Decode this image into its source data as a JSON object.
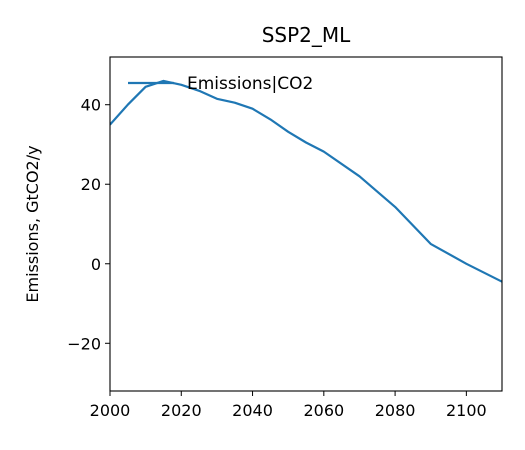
{
  "chart_data": {
    "type": "line",
    "title": "SSP2_ML",
    "xlabel": "",
    "ylabel": "Emissions, GtCO2/y",
    "xlim": [
      2000,
      2110
    ],
    "ylim": [
      -32,
      52
    ],
    "xticks": [
      2000,
      2020,
      2040,
      2060,
      2080,
      2100
    ],
    "yticks": [
      -20,
      0,
      20,
      40
    ],
    "ytick_labels": [
      "−20",
      "0",
      "20",
      "40"
    ],
    "legend": "upper left",
    "grid": false,
    "series": [
      {
        "name": "Emissions|CO2",
        "color": "#1f77b4",
        "x": [
          2000,
          2005,
          2010,
          2015,
          2020,
          2025,
          2030,
          2035,
          2040,
          2045,
          2050,
          2055,
          2060,
          2070,
          2080,
          2090,
          2100,
          2110
        ],
        "y": [
          35,
          40,
          44.5,
          46,
          45,
          43.5,
          41.5,
          40.5,
          39,
          36.3,
          33.2,
          30.5,
          28.2,
          22,
          14.3,
          5,
          0,
          -4.5
        ]
      }
    ]
  }
}
